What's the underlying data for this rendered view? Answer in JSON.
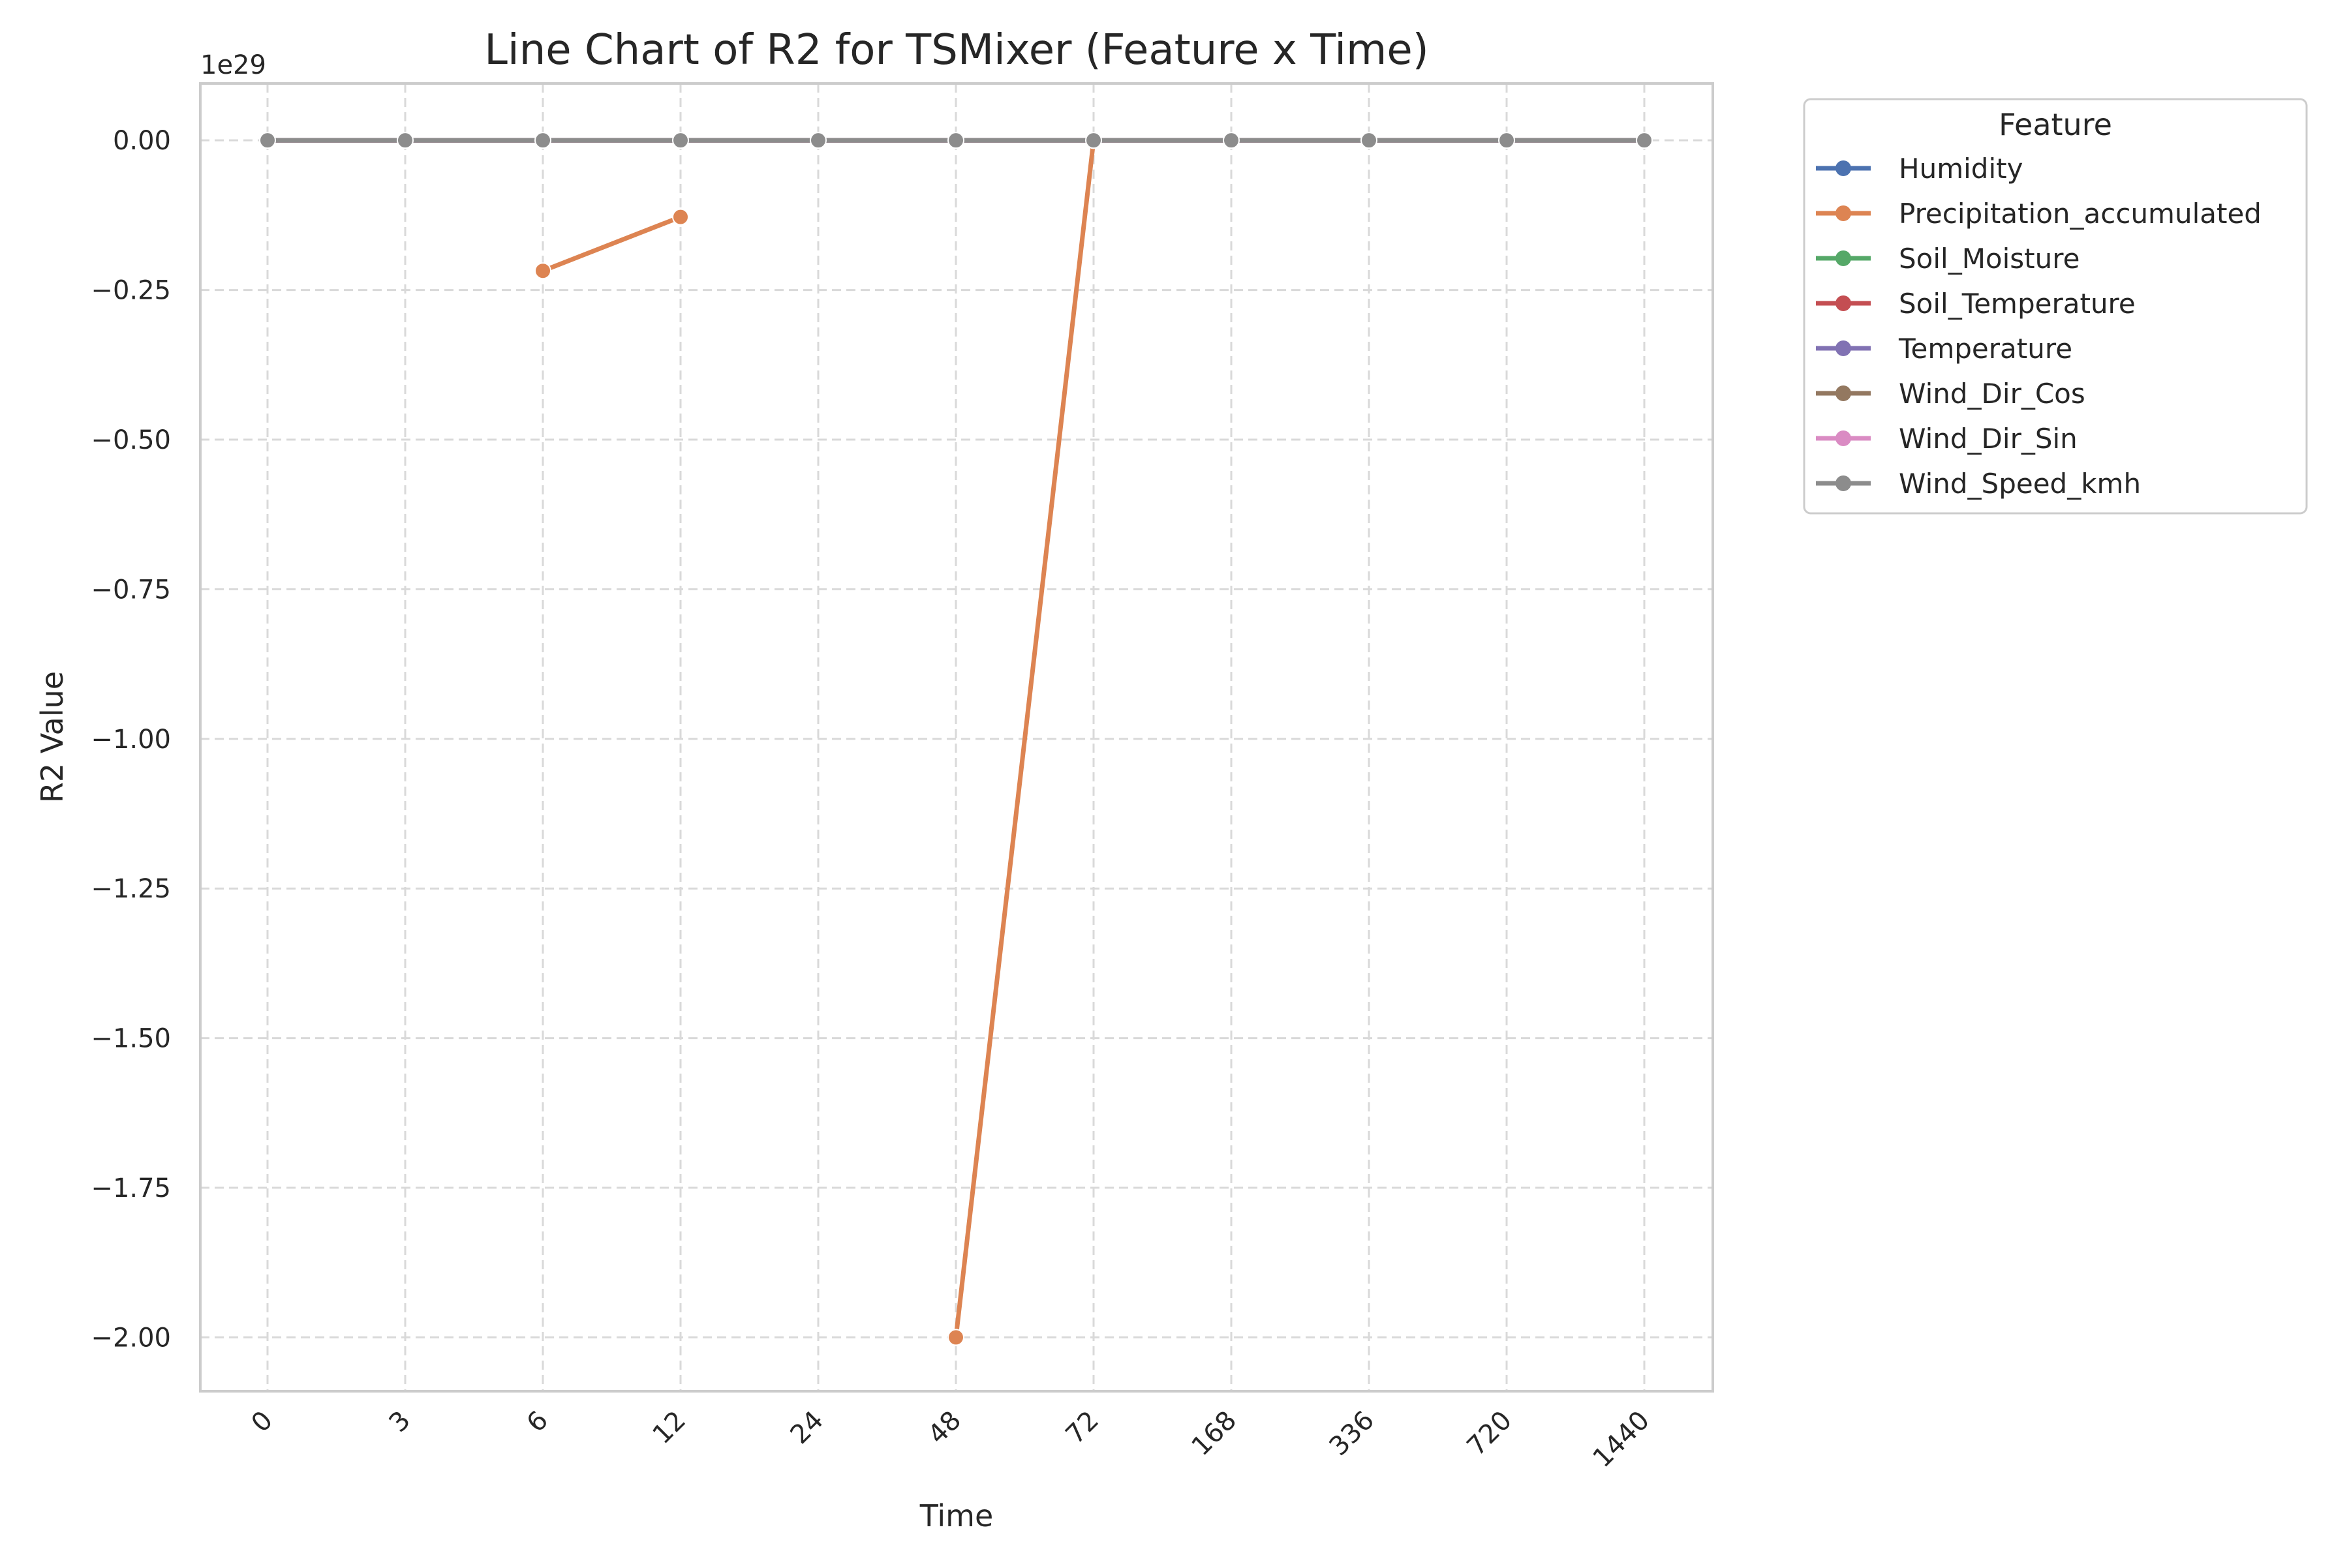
{
  "chart_data": {
    "type": "line",
    "title": "Line Chart of R2 for TSMixer (Feature x Time)",
    "xlabel": "Time",
    "ylabel": "R2 Value",
    "y_offset_label": "1e29",
    "y_scale": 1e+29,
    "ylim": [
      -2.09,
      0.095
    ],
    "yticks": [
      0.0,
      -0.25,
      -0.5,
      -0.75,
      -1.0,
      -1.25,
      -1.5,
      -1.75,
      -2.0
    ],
    "ytick_labels": [
      "0.00",
      "−0.25",
      "−0.50",
      "−0.75",
      "−1.00",
      "−1.25",
      "−1.50",
      "−1.75",
      "−2.00"
    ],
    "categories": [
      "0",
      "3",
      "6",
      "12",
      "24",
      "48",
      "72",
      "168",
      "336",
      "720",
      "1440"
    ],
    "grid": true,
    "legend_title": "Feature",
    "legend_placement": "outside-top-right",
    "series": [
      {
        "name": "Humidity",
        "color": "#4c72b0",
        "values": [
          0,
          0,
          0,
          0,
          0,
          0,
          0,
          0,
          0,
          0,
          0
        ]
      },
      {
        "name": "Precipitation_accumulated",
        "color": "#dd8452",
        "values": [
          null,
          null,
          -0.218,
          -0.128,
          null,
          -2.0,
          0,
          null,
          null,
          null,
          null
        ]
      },
      {
        "name": "Soil_Moisture",
        "color": "#55a868",
        "values": [
          0,
          0,
          0,
          0,
          0,
          0,
          0,
          0,
          0,
          0,
          0
        ]
      },
      {
        "name": "Soil_Temperature",
        "color": "#c44e52",
        "values": [
          0,
          0,
          0,
          0,
          0,
          0,
          0,
          0,
          0,
          0,
          0
        ]
      },
      {
        "name": "Temperature",
        "color": "#8172b3",
        "values": [
          0,
          0,
          0,
          0,
          0,
          0,
          0,
          0,
          0,
          0,
          0
        ]
      },
      {
        "name": "Wind_Dir_Cos",
        "color": "#937860",
        "values": [
          0,
          0,
          0,
          0,
          0,
          0,
          0,
          0,
          0,
          0,
          0
        ]
      },
      {
        "name": "Wind_Dir_Sin",
        "color": "#da8bc3",
        "values": [
          0,
          0,
          0,
          0,
          0,
          0,
          0,
          0,
          0,
          0,
          0
        ]
      },
      {
        "name": "Wind_Speed_kmh",
        "color": "#8c8c8c",
        "values": [
          0,
          0,
          0,
          0,
          0,
          0,
          0,
          0,
          0,
          0,
          0
        ]
      }
    ]
  }
}
